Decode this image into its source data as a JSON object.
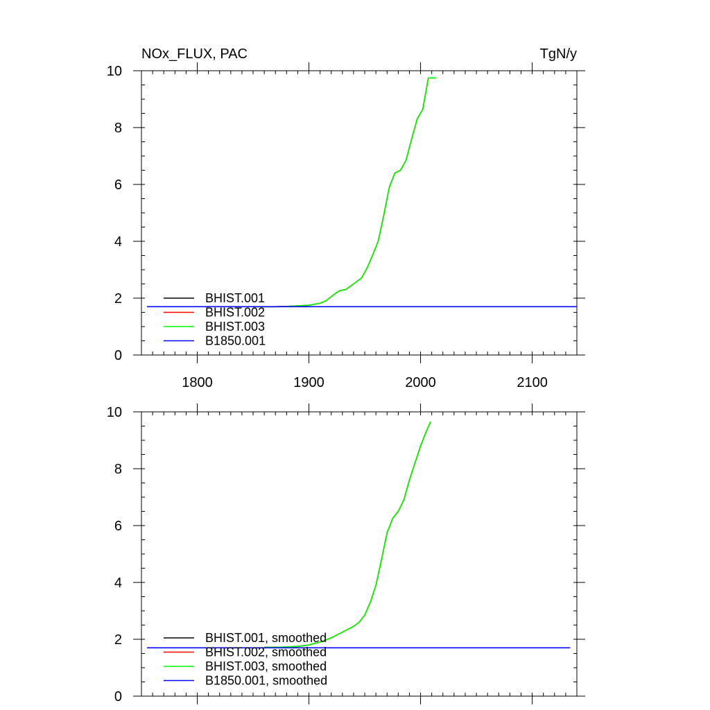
{
  "chart_data": [
    {
      "type": "line",
      "title": "NOx_FLUX, PAC",
      "units": "TgN/y",
      "xlabel": "",
      "ylabel": "",
      "xlim": [
        1750,
        2140
      ],
      "ylim": [
        0,
        10
      ],
      "xticks": [
        1800,
        1900,
        2000,
        2100
      ],
      "xtick_labels": [
        "1800",
        "1900",
        "2000",
        "2100"
      ],
      "yticks": [
        0,
        2,
        4,
        6,
        8,
        10
      ],
      "ytick_labels": [
        "0",
        "2",
        "4",
        "6",
        "8",
        "10"
      ],
      "legend_position": "bottom-left",
      "series": [
        {
          "name": "BHIST.001",
          "color": "#000000",
          "x": [
            1850,
            1870,
            1880,
            1890,
            1900,
            1910,
            1915,
            1920,
            1925,
            1928,
            1933,
            1940,
            1947,
            1952,
            1957,
            1962,
            1967,
            1972,
            1977,
            1982,
            1987,
            1992,
            1997,
            2002,
            2007,
            2014
          ],
          "y": [
            1.7,
            1.7,
            1.71,
            1.73,
            1.75,
            1.82,
            1.9,
            2.05,
            2.2,
            2.27,
            2.3,
            2.5,
            2.7,
            3.05,
            3.5,
            4.0,
            4.9,
            5.9,
            6.4,
            6.5,
            6.85,
            7.6,
            8.3,
            8.65,
            9.75,
            9.75
          ]
        },
        {
          "name": "BHIST.002",
          "color": "#ff0000",
          "x": [
            1850,
            1870,
            1880,
            1890,
            1900,
            1910,
            1915,
            1920,
            1925,
            1928,
            1933,
            1940,
            1947,
            1952,
            1957,
            1962,
            1967,
            1972,
            1977,
            1982,
            1987,
            1992,
            1997,
            2002,
            2007,
            2014
          ],
          "y": [
            1.7,
            1.7,
            1.71,
            1.73,
            1.75,
            1.82,
            1.9,
            2.05,
            2.2,
            2.27,
            2.3,
            2.5,
            2.7,
            3.05,
            3.5,
            4.0,
            4.9,
            5.9,
            6.4,
            6.5,
            6.85,
            7.6,
            8.3,
            8.65,
            9.75,
            9.75
          ]
        },
        {
          "name": "BHIST.003",
          "color": "#00ff00",
          "x": [
            1850,
            1870,
            1880,
            1890,
            1900,
            1910,
            1915,
            1920,
            1925,
            1928,
            1933,
            1940,
            1947,
            1952,
            1957,
            1962,
            1967,
            1972,
            1977,
            1982,
            1987,
            1992,
            1997,
            2002,
            2007,
            2014
          ],
          "y": [
            1.7,
            1.7,
            1.71,
            1.73,
            1.75,
            1.82,
            1.9,
            2.05,
            2.2,
            2.27,
            2.3,
            2.5,
            2.7,
            3.05,
            3.5,
            4.0,
            4.9,
            5.9,
            6.4,
            6.5,
            6.85,
            7.6,
            8.3,
            8.65,
            9.75,
            9.75
          ]
        },
        {
          "name": "B1850.001",
          "color": "#0000ff",
          "x": [
            1755,
            2140
          ],
          "y": [
            1.7,
            1.7
          ]
        }
      ]
    },
    {
      "type": "line",
      "title": "",
      "units": "",
      "xlabel": "",
      "ylabel": "",
      "xlim": [
        1750,
        2140
      ],
      "ylim": [
        0,
        10
      ],
      "xticks": [
        1800,
        1900,
        2000,
        2100
      ],
      "xtick_labels": [
        "",
        "",
        "",
        ""
      ],
      "yticks": [
        0,
        2,
        4,
        6,
        8,
        10
      ],
      "ytick_labels": [
        "0",
        "2",
        "4",
        "6",
        "8",
        "10"
      ],
      "legend_position": "bottom-left",
      "series": [
        {
          "name": "BHIST.001, smoothed",
          "color": "#000000",
          "x": [
            1860,
            1870,
            1880,
            1890,
            1900,
            1910,
            1920,
            1930,
            1935,
            1940,
            1945,
            1950,
            1955,
            1960,
            1965,
            1970,
            1975,
            1980,
            1985,
            1990,
            1995,
            2000,
            2005,
            2009
          ],
          "y": [
            1.72,
            1.72,
            1.73,
            1.75,
            1.8,
            1.9,
            2.05,
            2.25,
            2.35,
            2.45,
            2.6,
            2.85,
            3.3,
            3.9,
            4.8,
            5.75,
            6.25,
            6.5,
            6.9,
            7.6,
            8.2,
            8.8,
            9.3,
            9.65
          ]
        },
        {
          "name": "BHIST.002, smoothed",
          "color": "#ff0000",
          "x": [
            1860,
            1870,
            1880,
            1890,
            1900,
            1910,
            1920,
            1930,
            1935,
            1940,
            1945,
            1950,
            1955,
            1960,
            1965,
            1970,
            1975,
            1980,
            1985,
            1990,
            1995,
            2000,
            2005,
            2009
          ],
          "y": [
            1.72,
            1.72,
            1.73,
            1.75,
            1.8,
            1.9,
            2.05,
            2.25,
            2.35,
            2.45,
            2.6,
            2.85,
            3.3,
            3.9,
            4.8,
            5.75,
            6.25,
            6.5,
            6.9,
            7.6,
            8.2,
            8.8,
            9.3,
            9.65
          ]
        },
        {
          "name": "BHIST.003, smoothed",
          "color": "#00ff00",
          "x": [
            1860,
            1870,
            1880,
            1890,
            1900,
            1910,
            1920,
            1930,
            1935,
            1940,
            1945,
            1950,
            1955,
            1960,
            1965,
            1970,
            1975,
            1980,
            1985,
            1990,
            1995,
            2000,
            2005,
            2009
          ],
          "y": [
            1.72,
            1.72,
            1.73,
            1.75,
            1.8,
            1.9,
            2.05,
            2.25,
            2.35,
            2.45,
            2.6,
            2.85,
            3.3,
            3.9,
            4.8,
            5.75,
            6.25,
            6.5,
            6.9,
            7.6,
            8.2,
            8.8,
            9.3,
            9.65
          ]
        },
        {
          "name": "B1850.001, smoothed",
          "color": "#0000ff",
          "x": [
            1755,
            2134
          ],
          "y": [
            1.7,
            1.7
          ]
        }
      ]
    }
  ]
}
